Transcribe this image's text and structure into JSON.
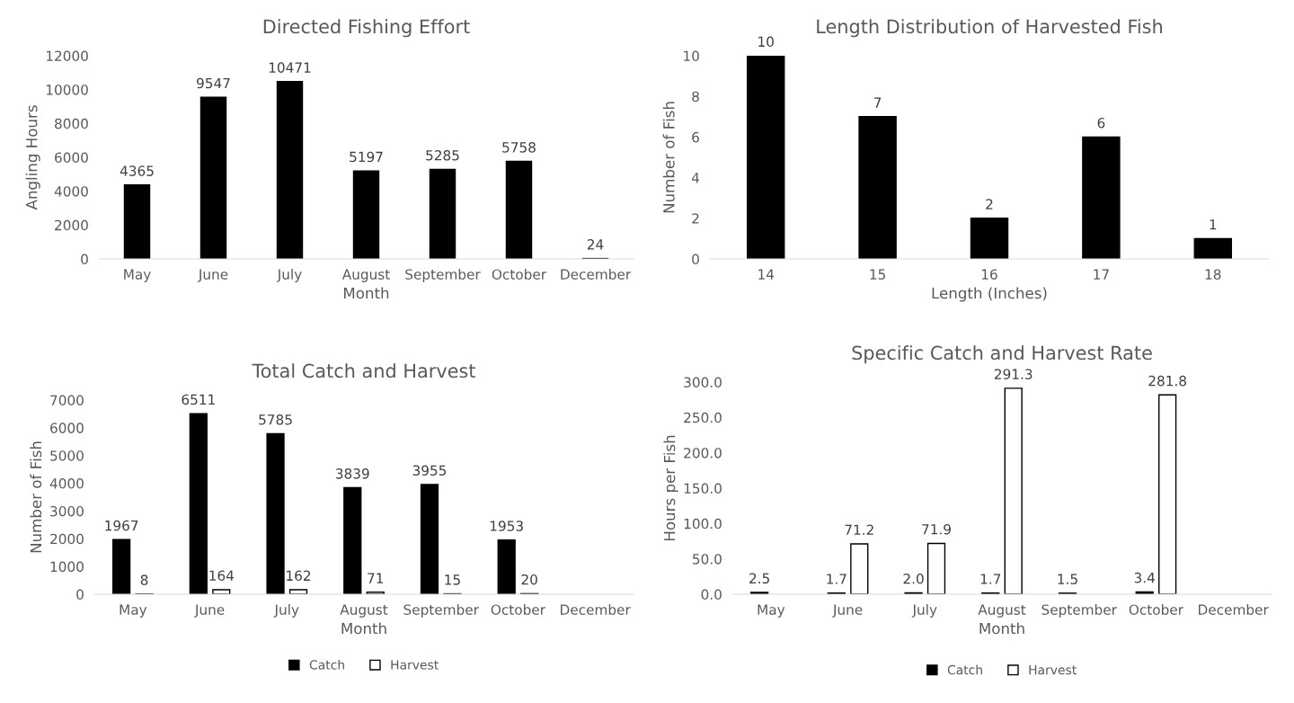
{
  "chart_data": [
    {
      "type": "bar",
      "title": "Directed Fishing Effort",
      "xlabel": "Month",
      "ylabel": "Angling Hours",
      "categories": [
        "May",
        "June",
        "July",
        "August",
        "September",
        "October",
        "December"
      ],
      "values": [
        4365,
        9547,
        10471,
        5197,
        5285,
        5758,
        24
      ],
      "color": "#000000",
      "ylim": [
        0,
        12000
      ],
      "yticks": [
        0,
        2000,
        4000,
        6000,
        8000,
        10000,
        12000
      ],
      "data_labels": true,
      "grid": false,
      "legend": false
    },
    {
      "type": "bar",
      "title": "Length Distribution of Harvested Fish",
      "xlabel": "Length (Inches)",
      "ylabel": "Number of Fish",
      "categories": [
        "14",
        "15",
        "16",
        "17",
        "18"
      ],
      "values": [
        10,
        7,
        2,
        6,
        1
      ],
      "color": "#000000",
      "ylim": [
        0,
        10
      ],
      "yticks": [
        0,
        2,
        4,
        6,
        8,
        10
      ],
      "data_labels": true,
      "grid": false,
      "legend": false
    },
    {
      "type": "bar",
      "title": "Total Catch and Harvest",
      "xlabel": "Month",
      "ylabel": "Number of Fish",
      "categories": [
        "May",
        "June",
        "July",
        "August",
        "September",
        "October",
        "December"
      ],
      "series": [
        {
          "name": "Catch",
          "color": "#000000",
          "values": [
            1967,
            6511,
            5785,
            3839,
            3955,
            1953,
            null
          ]
        },
        {
          "name": "Harvest",
          "color": "#ffffff",
          "values": [
            8,
            164,
            162,
            71,
            15,
            20,
            null
          ]
        }
      ],
      "ylim": [
        0,
        7000
      ],
      "yticks": [
        0,
        1000,
        2000,
        3000,
        4000,
        5000,
        6000,
        7000
      ],
      "data_labels": true,
      "grid": false,
      "legend": "bottom"
    },
    {
      "type": "bar",
      "title": "Specific Catch and Harvest Rate",
      "xlabel": "Month",
      "ylabel": "Hours per Fish",
      "categories": [
        "May",
        "June",
        "July",
        "August",
        "September",
        "October",
        "December"
      ],
      "series": [
        {
          "name": "Catch",
          "color": "#000000",
          "values": [
            2.5,
            1.7,
            2.0,
            1.7,
            1.5,
            3.4,
            null
          ],
          "value_labels": [
            "2.5",
            "1.7",
            "2.0",
            "1.7",
            "1.5",
            "3.4",
            null
          ]
        },
        {
          "name": "Harvest",
          "color": "#ffffff",
          "values": [
            null,
            71.2,
            71.9,
            291.3,
            null,
            281.8,
            null
          ],
          "value_labels": [
            null,
            "71.2",
            "71.9",
            "291.3",
            null,
            "281.8",
            null
          ]
        }
      ],
      "ylim": [
        0,
        300
      ],
      "yticks": [
        {
          "value": 0,
          "label": "0.0"
        },
        {
          "value": 50,
          "label": "50.0"
        },
        {
          "value": 100,
          "label": "100.0"
        },
        {
          "value": 150,
          "label": "150.0"
        },
        {
          "value": 200,
          "label": "200.0"
        },
        {
          "value": 250,
          "label": "250.0"
        },
        {
          "value": 300,
          "label": "300.0"
        }
      ],
      "grid": false,
      "legend": "bottom"
    }
  ]
}
